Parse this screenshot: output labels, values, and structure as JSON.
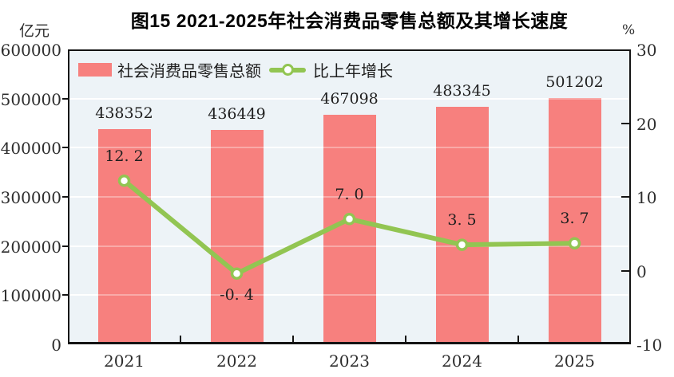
{
  "header": {
    "title": "图15  2021-2025年社会消费品零售总额及其增长速度"
  },
  "colors": {
    "bar": "#f7807e",
    "line": "#92c552",
    "marker_fill": "#ffffff",
    "plot_background": "#edf3f7",
    "gridline": "#ffffff",
    "axis_frame": "#141414",
    "text": "#2d2d2d"
  },
  "chart_data": {
    "type": "bar",
    "subtype": "bar-line-combo",
    "title": "图15  2021-2025年社会消费品零售总额及其增长速度",
    "categories": [
      "2021",
      "2022",
      "2023",
      "2024",
      "2025"
    ],
    "series": [
      {
        "name": "社会消费品零售总额",
        "type": "bar",
        "axis": "left",
        "values": [
          438352,
          436449,
          467098,
          483345,
          501202
        ],
        "value_labels": [
          "438352",
          "436449",
          "467098",
          "483345",
          "501202"
        ]
      },
      {
        "name": "比上年增长",
        "type": "line",
        "axis": "right",
        "marker": "circle-white-fill",
        "values": [
          12.2,
          -0.4,
          7.0,
          3.5,
          3.7
        ],
        "value_labels": [
          "12. 2",
          "-0. 4",
          "7. 0",
          "3. 5",
          "3. 7"
        ],
        "label_positions": [
          "above",
          "below",
          "above",
          "above",
          "above"
        ]
      }
    ],
    "left_axis": {
      "unit": "亿元",
      "min": 0,
      "max": 600000,
      "tick_values": [
        600000,
        500000,
        400000,
        300000,
        200000,
        100000,
        0
      ],
      "tick_labels": [
        "600000",
        "500000",
        "400000",
        "300000",
        "200000",
        "100000",
        "0"
      ],
      "inner_tick_values": [
        500000,
        400000,
        300000,
        200000,
        100000
      ]
    },
    "right_axis": {
      "unit": "%",
      "min": -10,
      "max": 30,
      "tick_values": [
        30,
        20,
        10,
        0,
        -10
      ],
      "tick_labels": [
        "30",
        "20",
        "10",
        "0",
        "-10"
      ],
      "inner_tick_values": [
        20,
        10,
        0
      ]
    },
    "grid": {
      "horizontal": true,
      "vertical": false
    },
    "legend": {
      "position": "top-left-inside",
      "items": [
        "社会消费品零售总额",
        "比上年增长"
      ]
    }
  }
}
